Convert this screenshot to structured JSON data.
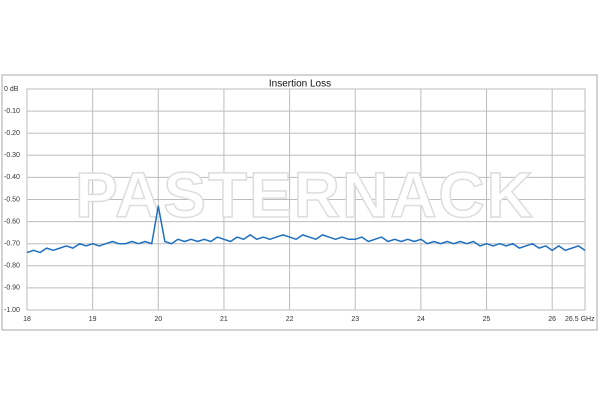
{
  "chart_data": {
    "type": "line",
    "title": "Insertion Loss",
    "watermark": "PASTERNACK",
    "x": [
      18,
      18.1,
      18.2,
      18.3,
      18.4,
      18.5,
      18.6,
      18.7,
      18.8,
      18.9,
      19,
      19.1,
      19.2,
      19.3,
      19.4,
      19.5,
      19.6,
      19.7,
      19.8,
      19.9,
      20,
      20.1,
      20.2,
      20.3,
      20.4,
      20.5,
      20.6,
      20.7,
      20.8,
      20.9,
      21,
      21.1,
      21.2,
      21.3,
      21.4,
      21.5,
      21.6,
      21.7,
      21.8,
      21.9,
      22,
      22.1,
      22.2,
      22.3,
      22.4,
      22.5,
      22.6,
      22.7,
      22.8,
      22.9,
      23,
      23.1,
      23.2,
      23.3,
      23.4,
      23.5,
      23.6,
      23.7,
      23.8,
      23.9,
      24,
      24.1,
      24.2,
      24.3,
      24.4,
      24.5,
      24.6,
      24.7,
      24.8,
      24.9,
      25,
      25.1,
      25.2,
      25.3,
      25.4,
      25.5,
      25.6,
      25.7,
      25.8,
      25.9,
      26,
      26.1,
      26.2,
      26.3,
      26.4,
      26.5
    ],
    "values": [
      -0.74,
      -0.73,
      -0.74,
      -0.72,
      -0.73,
      -0.72,
      -0.71,
      -0.72,
      -0.7,
      -0.71,
      -0.7,
      -0.71,
      -0.7,
      -0.69,
      -0.7,
      -0.7,
      -0.69,
      -0.7,
      -0.69,
      -0.7,
      -0.53,
      -0.69,
      -0.7,
      -0.68,
      -0.69,
      -0.68,
      -0.69,
      -0.68,
      -0.69,
      -0.67,
      -0.68,
      -0.69,
      -0.67,
      -0.68,
      -0.66,
      -0.68,
      -0.67,
      -0.68,
      -0.67,
      -0.66,
      -0.67,
      -0.68,
      -0.66,
      -0.67,
      -0.68,
      -0.66,
      -0.67,
      -0.68,
      -0.67,
      -0.68,
      -0.68,
      -0.67,
      -0.69,
      -0.68,
      -0.67,
      -0.69,
      -0.68,
      -0.69,
      -0.68,
      -0.69,
      -0.68,
      -0.7,
      -0.69,
      -0.7,
      -0.69,
      -0.7,
      -0.69,
      -0.7,
      -0.69,
      -0.71,
      -0.7,
      -0.71,
      -0.7,
      -0.71,
      -0.7,
      -0.72,
      -0.71,
      -0.7,
      -0.72,
      -0.71,
      -0.73,
      -0.71,
      -0.73,
      -0.72,
      -0.71,
      -0.73
    ],
    "color": "#1f6fc0",
    "xlim": [
      18,
      26.5
    ],
    "xticks": [
      18,
      19,
      20,
      21,
      22,
      23,
      24,
      25,
      26,
      {
        "value": 26.5,
        "label": "26.5 GHz"
      }
    ],
    "ylim": [
      -1,
      0
    ],
    "yticks": [
      {
        "value": 0,
        "label": "0 dB"
      },
      {
        "value": -0.1,
        "label": "-0.10"
      },
      {
        "value": -0.2,
        "label": "-0.20"
      },
      {
        "value": -0.3,
        "label": "-0.30"
      },
      {
        "value": -0.4,
        "label": "-0.40"
      },
      {
        "value": -0.5,
        "label": "-0.50"
      },
      {
        "value": -0.6,
        "label": "-0.60"
      },
      {
        "value": -0.7,
        "label": "-0.70"
      },
      {
        "value": -0.8,
        "label": "-0.80"
      },
      {
        "value": -0.9,
        "label": "-0.90"
      },
      {
        "value": -1,
        "label": "-1.00"
      }
    ],
    "grid": true
  }
}
